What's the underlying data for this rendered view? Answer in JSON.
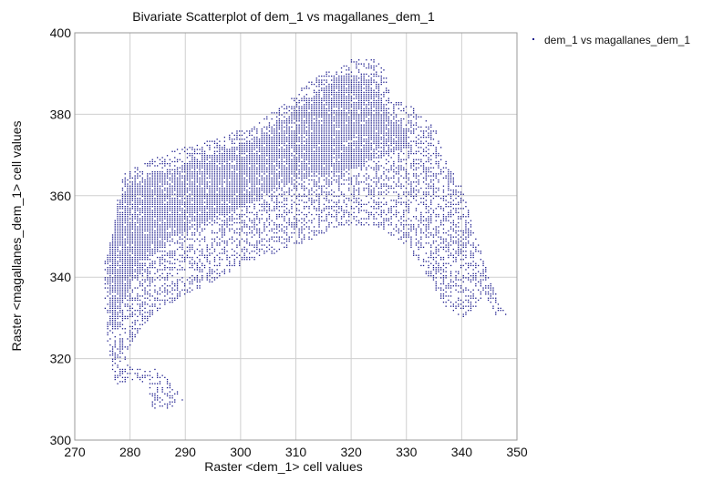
{
  "chart_data": {
    "type": "scatter",
    "title": "Bivariate Scatterplot of dem_1 vs magallanes_dem_1",
    "xlabel": "Raster <dem_1> cell values",
    "ylabel": "Raster <magallanes_dem_1> cell values",
    "xlim": [
      270,
      350
    ],
    "ylim": [
      300,
      400
    ],
    "xticks": [
      270,
      280,
      290,
      300,
      310,
      320,
      330,
      340,
      350
    ],
    "yticks": [
      300,
      320,
      340,
      360,
      380,
      400
    ],
    "xtick_labels": [
      "270",
      "280",
      "290",
      "300",
      "310",
      "320",
      "330",
      "340",
      "350"
    ],
    "ytick_labels": [
      "300",
      "320",
      "340",
      "360",
      "380",
      "400"
    ],
    "grid": true,
    "legend": {
      "position": "top-right",
      "entries": [
        "dem_1 vs magallanes_dem_1"
      ]
    },
    "series": [
      {
        "name": "dem_1 vs magallanes_dem_1",
        "color": "#1a1a8c",
        "x_step": 0.45,
        "y_step": 0.5,
        "region_outline": [
          [
            275.5,
            346
          ],
          [
            277,
            352
          ],
          [
            277.5,
            358
          ],
          [
            278,
            362
          ],
          [
            279,
            366
          ],
          [
            282,
            368
          ],
          [
            287,
            371
          ],
          [
            292,
            373
          ],
          [
            297,
            375
          ],
          [
            303,
            378
          ],
          [
            308,
            383
          ],
          [
            312,
            388
          ],
          [
            316,
            391
          ],
          [
            320,
            394
          ],
          [
            324,
            394
          ],
          [
            326,
            391
          ],
          [
            327,
            384
          ],
          [
            331,
            382
          ],
          [
            335,
            377
          ],
          [
            337,
            369
          ],
          [
            340,
            362
          ],
          [
            342,
            352
          ],
          [
            345,
            340
          ],
          [
            347,
            333
          ],
          [
            348,
            331
          ],
          [
            346,
            331
          ],
          [
            344,
            336
          ],
          [
            342,
            332
          ],
          [
            340,
            330
          ],
          [
            337,
            333
          ],
          [
            333,
            342
          ],
          [
            329,
            349
          ],
          [
            324,
            353
          ],
          [
            318,
            353
          ],
          [
            312,
            349
          ],
          [
            306,
            346
          ],
          [
            300,
            343
          ],
          [
            295,
            339
          ],
          [
            290,
            336
          ],
          [
            284,
            331
          ],
          [
            281,
            326
          ],
          [
            279,
            321
          ],
          [
            280,
            318
          ],
          [
            284,
            318
          ],
          [
            286,
            316
          ],
          [
            288,
            313
          ],
          [
            289.5,
            310
          ],
          [
            287,
            308
          ],
          [
            284,
            308
          ],
          [
            283,
            314
          ],
          [
            280,
            315
          ],
          [
            277.5,
            313
          ],
          [
            276.5,
            317
          ],
          [
            276,
            322
          ],
          [
            275.5,
            330
          ],
          [
            275,
            338
          ],
          [
            275.5,
            346
          ]
        ],
        "dense_region": [
          [
            276,
            346
          ],
          [
            277,
            356
          ],
          [
            279,
            362
          ],
          [
            282,
            364
          ],
          [
            288,
            367
          ],
          [
            294,
            370
          ],
          [
            300,
            373
          ],
          [
            305,
            376
          ],
          [
            310,
            381
          ],
          [
            314,
            386
          ],
          [
            318,
            390
          ],
          [
            322,
            390
          ],
          [
            325,
            385
          ],
          [
            327,
            379
          ],
          [
            330,
            376
          ],
          [
            330,
            372
          ],
          [
            324,
            369
          ],
          [
            318,
            366
          ],
          [
            310,
            364
          ],
          [
            304,
            360
          ],
          [
            298,
            356
          ],
          [
            292,
            353
          ],
          [
            287,
            349
          ],
          [
            283,
            344
          ],
          [
            280,
            338
          ],
          [
            278,
            332
          ],
          [
            277,
            326
          ],
          [
            276,
            330
          ],
          [
            276,
            338
          ],
          [
            276,
            346
          ]
        ]
      }
    ]
  }
}
